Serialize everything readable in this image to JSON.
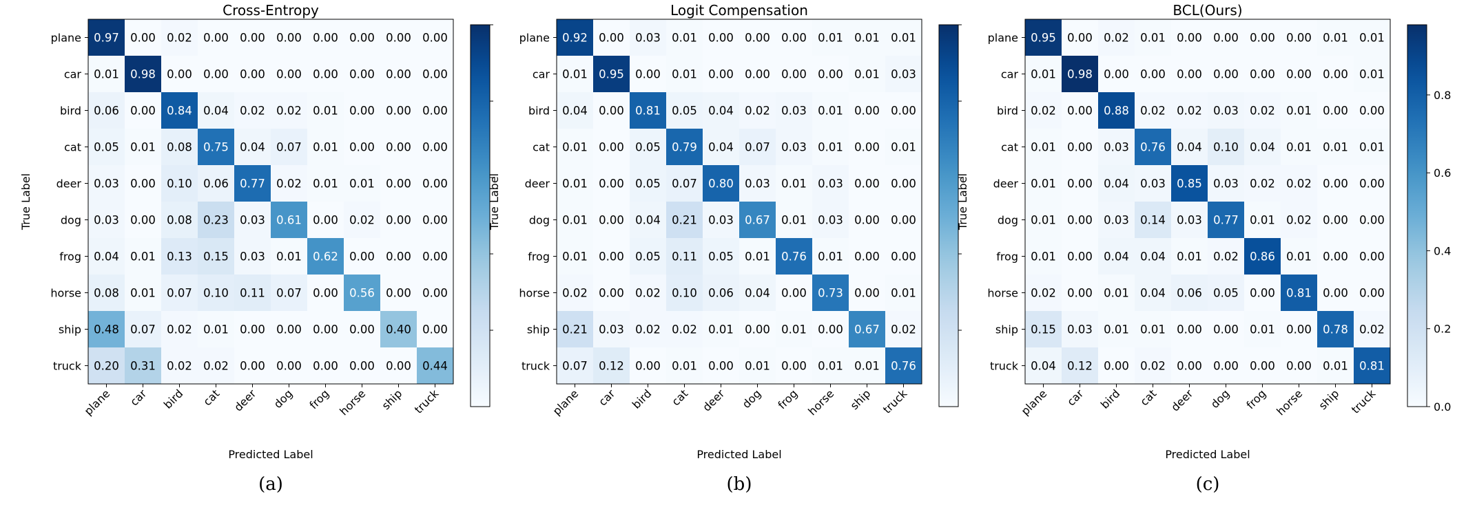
{
  "chart_data": [
    {
      "type": "heatmap",
      "title": "Cross-Entropy",
      "xlabel": "Predicted Label",
      "ylabel": "True Label",
      "caption": "(a)",
      "categories": [
        "plane",
        "car",
        "bird",
        "cat",
        "deer",
        "dog",
        "frog",
        "horse",
        "ship",
        "truck"
      ],
      "value_range": [
        0,
        1
      ],
      "colorbar_ticks": [],
      "matrix": [
        [
          0.97,
          0.0,
          0.02,
          0.0,
          0.0,
          0.0,
          0.0,
          0.0,
          0.0,
          0.0
        ],
        [
          0.01,
          0.98,
          0.0,
          0.0,
          0.0,
          0.0,
          0.0,
          0.0,
          0.0,
          0.0
        ],
        [
          0.06,
          0.0,
          0.84,
          0.04,
          0.02,
          0.02,
          0.01,
          0.0,
          0.0,
          0.0
        ],
        [
          0.05,
          0.01,
          0.08,
          0.75,
          0.04,
          0.07,
          0.01,
          0.0,
          0.0,
          0.0
        ],
        [
          0.03,
          0.0,
          0.1,
          0.06,
          0.77,
          0.02,
          0.01,
          0.01,
          0.0,
          0.0
        ],
        [
          0.03,
          0.0,
          0.08,
          0.23,
          0.03,
          0.61,
          0.0,
          0.02,
          0.0,
          0.0
        ],
        [
          0.04,
          0.01,
          0.13,
          0.15,
          0.03,
          0.01,
          0.62,
          0.0,
          0.0,
          0.0
        ],
        [
          0.08,
          0.01,
          0.07,
          0.1,
          0.11,
          0.07,
          0.0,
          0.56,
          0.0,
          0.0
        ],
        [
          0.48,
          0.07,
          0.02,
          0.01,
          0.0,
          0.0,
          0.0,
          0.0,
          0.4,
          0.0
        ],
        [
          0.2,
          0.31,
          0.02,
          0.02,
          0.0,
          0.0,
          0.0,
          0.0,
          0.0,
          0.44
        ]
      ]
    },
    {
      "type": "heatmap",
      "title": "Logit Compensation",
      "xlabel": "Predicted Label",
      "ylabel": "True Label",
      "caption": "(b)",
      "categories": [
        "plane",
        "car",
        "bird",
        "cat",
        "deer",
        "dog",
        "frog",
        "horse",
        "ship",
        "truck"
      ],
      "value_range": [
        0,
        1
      ],
      "colorbar_ticks": [],
      "matrix": [
        [
          0.92,
          0.0,
          0.03,
          0.01,
          0.0,
          0.0,
          0.0,
          0.01,
          0.01,
          0.01
        ],
        [
          0.01,
          0.95,
          0.0,
          0.01,
          0.0,
          0.0,
          0.0,
          0.0,
          0.01,
          0.03
        ],
        [
          0.04,
          0.0,
          0.81,
          0.05,
          0.04,
          0.02,
          0.03,
          0.01,
          0.0,
          0.0
        ],
        [
          0.01,
          0.0,
          0.05,
          0.79,
          0.04,
          0.07,
          0.03,
          0.01,
          0.0,
          0.01
        ],
        [
          0.01,
          0.0,
          0.05,
          0.07,
          0.8,
          0.03,
          0.01,
          0.03,
          0.0,
          0.0
        ],
        [
          0.01,
          0.0,
          0.04,
          0.21,
          0.03,
          0.67,
          0.01,
          0.03,
          0.0,
          0.0
        ],
        [
          0.01,
          0.0,
          0.05,
          0.11,
          0.05,
          0.01,
          0.76,
          0.01,
          0.0,
          0.0
        ],
        [
          0.02,
          0.0,
          0.02,
          0.1,
          0.06,
          0.04,
          0.0,
          0.73,
          0.0,
          0.01
        ],
        [
          0.21,
          0.03,
          0.02,
          0.02,
          0.01,
          0.0,
          0.01,
          0.0,
          0.67,
          0.02
        ],
        [
          0.07,
          0.12,
          0.0,
          0.01,
          0.0,
          0.01,
          0.0,
          0.01,
          0.01,
          0.76
        ]
      ]
    },
    {
      "type": "heatmap",
      "title": "BCL(Ours)",
      "xlabel": "Predicted Label",
      "ylabel": "True Label",
      "caption": "(c)",
      "categories": [
        "plane",
        "car",
        "bird",
        "cat",
        "deer",
        "dog",
        "frog",
        "horse",
        "ship",
        "truck"
      ],
      "value_range": [
        0,
        0.98
      ],
      "colorbar_ticks": [
        "0.0",
        "0.2",
        "0.4",
        "0.6",
        "0.8"
      ],
      "matrix": [
        [
          0.95,
          0.0,
          0.02,
          0.01,
          0.0,
          0.0,
          0.0,
          0.0,
          0.01,
          0.01
        ],
        [
          0.01,
          0.98,
          0.0,
          0.0,
          0.0,
          0.0,
          0.0,
          0.0,
          0.0,
          0.01
        ],
        [
          0.02,
          0.0,
          0.88,
          0.02,
          0.02,
          0.03,
          0.02,
          0.01,
          0.0,
          0.0
        ],
        [
          0.01,
          0.0,
          0.03,
          0.76,
          0.04,
          0.1,
          0.04,
          0.01,
          0.01,
          0.01
        ],
        [
          0.01,
          0.0,
          0.04,
          0.03,
          0.85,
          0.03,
          0.02,
          0.02,
          0.0,
          0.0
        ],
        [
          0.01,
          0.0,
          0.03,
          0.14,
          0.03,
          0.77,
          0.01,
          0.02,
          0.0,
          0.0
        ],
        [
          0.01,
          0.0,
          0.04,
          0.04,
          0.01,
          0.02,
          0.86,
          0.01,
          0.0,
          0.0
        ],
        [
          0.02,
          0.0,
          0.01,
          0.04,
          0.06,
          0.05,
          0.0,
          0.81,
          0.0,
          0.0
        ],
        [
          0.15,
          0.03,
          0.01,
          0.01,
          0.0,
          0.0,
          0.01,
          0.0,
          0.78,
          0.02
        ],
        [
          0.04,
          0.12,
          0.0,
          0.02,
          0.0,
          0.0,
          0.0,
          0.0,
          0.01,
          0.81
        ]
      ]
    }
  ],
  "colors": {
    "cmap_low": "#f7fbff",
    "cmap_high": "#08306b",
    "text_dark": "#000000",
    "text_light": "#ffffff"
  }
}
